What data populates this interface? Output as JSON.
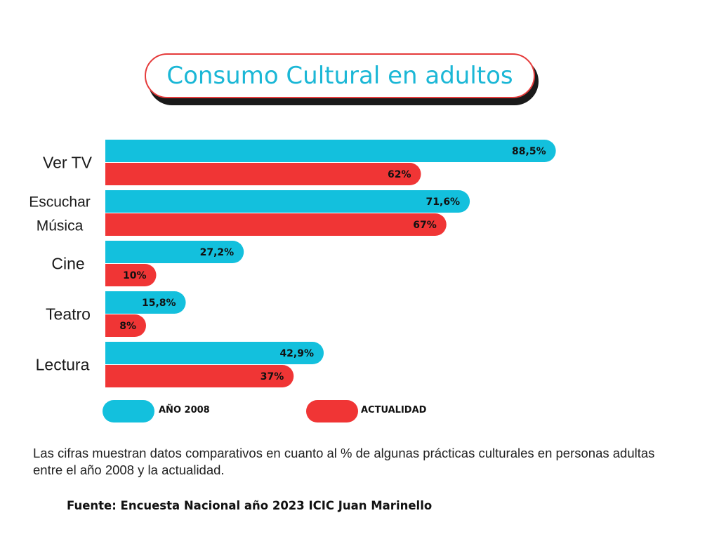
{
  "title": "Consumo Cultural en adultos",
  "chart_data": {
    "type": "bar",
    "orientation": "horizontal",
    "title": "Consumo Cultural en adultos",
    "categories": [
      [
        "Ver TV"
      ],
      [
        "Escuchar",
        "Música"
      ],
      [
        "Cine"
      ],
      [
        "Teatro"
      ],
      [
        "Lectura"
      ]
    ],
    "series": [
      {
        "name": "AÑO 2008",
        "color": "#13c0dd",
        "values": [
          88.5,
          71.6,
          27.2,
          15.8,
          42.9
        ],
        "labels": [
          "88,5%",
          "71,6%",
          "27,2%",
          "15,8%",
          "42,9%"
        ]
      },
      {
        "name": "ACTUALIDAD",
        "color": "#f03535",
        "values": [
          62,
          67,
          10,
          8,
          37
        ],
        "labels": [
          "62%",
          "67%",
          "10%",
          "8%",
          "37%"
        ]
      }
    ],
    "xlim": [
      0,
      100
    ],
    "grid": false,
    "legend_position": "bottom"
  },
  "legend": [
    {
      "label": "AÑO 2008",
      "color": "#13c0dd"
    },
    {
      "label": "ACTUALIDAD",
      "color": "#f03535"
    }
  ],
  "description": "Las cifras muestran datos comparativos en cuanto al % de algunas prácticas culturales en personas adultas entre el año 2008 y la actualidad.",
  "source": "Fuente: Encuesta Nacional año 2023 ICIC Juan Marinello"
}
